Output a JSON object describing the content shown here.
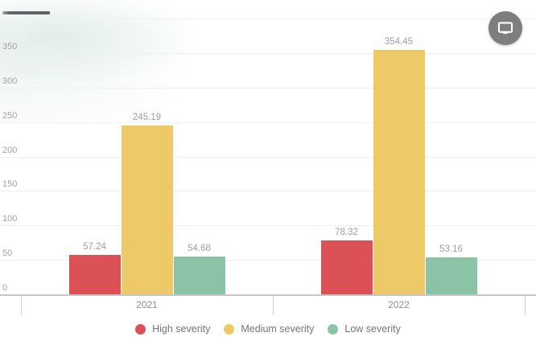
{
  "toolbar": {
    "view_button_icon": "monitor-icon",
    "view_button_bg": "#7e7e7e"
  },
  "chart_data": {
    "type": "bar",
    "title": "",
    "categories": [
      "2021",
      "2022"
    ],
    "series": [
      {
        "name": "High severity",
        "color": "#db5156",
        "values": [
          57.24,
          78.32
        ]
      },
      {
        "name": "Medium severity",
        "color": "#edc967",
        "values": [
          245.19,
          354.45
        ]
      },
      {
        "name": "Low severity",
        "color": "#8ac3a5",
        "values": [
          54.68,
          53.16
        ]
      }
    ],
    "ylim": [
      0,
      400
    ],
    "ytick_step": 50,
    "ytick_labels": [
      "0",
      "50",
      "100",
      "150",
      "200",
      "250",
      "300",
      "350"
    ],
    "grid": true,
    "legend_position": "bottom",
    "value_labels_shown": true,
    "colors": {
      "grid": "#efefef",
      "axis_line": "#c6c6c6",
      "tick": "#cfcfcf",
      "ytick_text": "#a3a3a3",
      "value_text": "#9e9e9e",
      "category_text": "#8f8f8f",
      "legend_text": "#757575"
    }
  }
}
